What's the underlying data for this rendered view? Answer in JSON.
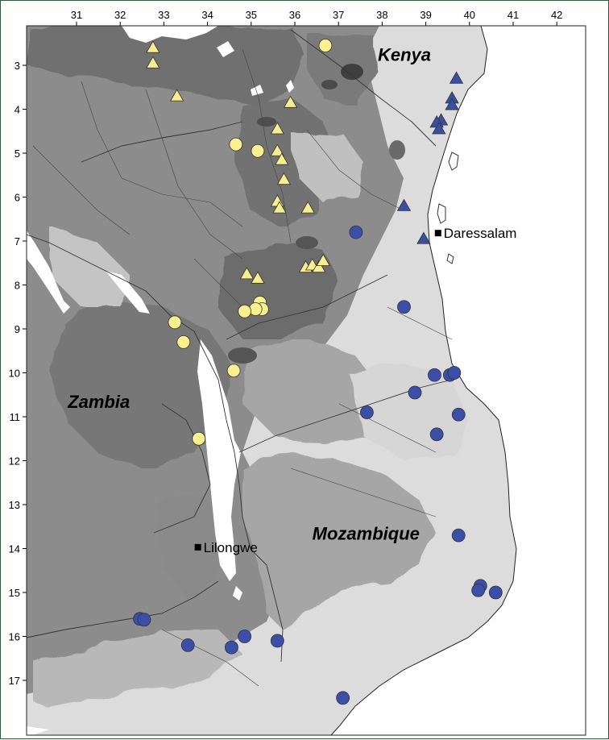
{
  "map": {
    "lon_ticks": [
      31,
      32,
      33,
      34,
      35,
      36,
      37,
      38,
      39,
      40,
      41,
      42
    ],
    "lat_ticks": [
      3,
      4,
      5,
      6,
      7,
      8,
      9,
      10,
      11,
      12,
      13,
      14,
      15,
      16,
      17
    ],
    "countries": [
      {
        "name": "Kenya",
        "lon": 37.9,
        "lat": 2.9
      },
      {
        "name": "Zambia",
        "lon": 30.8,
        "lat": 10.8
      },
      {
        "name": "Mozambique",
        "lon": 36.4,
        "lat": 13.8
      }
    ],
    "cities": [
      {
        "name": "Daressalam",
        "lon": 39.28,
        "lat": 6.82
      },
      {
        "name": "Lilongwe",
        "lon": 33.78,
        "lat": 13.97
      }
    ],
    "colors": {
      "triangle_yellow": "#f7ef8f",
      "triangle_blue": "#3a4fa0",
      "circle_yellow": "#faf08f",
      "circle_blue": "#3b4fa8",
      "lake": "#ffffff",
      "ocean": "#ffffff"
    },
    "yellow_triangles": [
      [
        32.75,
        2.6
      ],
      [
        32.75,
        2.95
      ],
      [
        33.3,
        3.7
      ],
      [
        35.9,
        3.85
      ],
      [
        35.6,
        4.45
      ],
      [
        35.6,
        4.95
      ],
      [
        35.7,
        5.15
      ],
      [
        35.75,
        5.6
      ],
      [
        35.6,
        6.1
      ],
      [
        35.65,
        6.25
      ],
      [
        36.3,
        6.25
      ],
      [
        34.9,
        7.75
      ],
      [
        35.15,
        7.85
      ],
      [
        36.25,
        7.6
      ],
      [
        36.4,
        7.55
      ],
      [
        36.55,
        7.6
      ],
      [
        36.65,
        7.45
      ]
    ],
    "blue_triangles": [
      [
        39.7,
        3.3
      ],
      [
        39.6,
        3.75
      ],
      [
        39.6,
        3.9
      ],
      [
        39.35,
        4.25
      ],
      [
        39.25,
        4.3
      ],
      [
        39.3,
        4.45
      ],
      [
        38.5,
        6.2
      ],
      [
        38.95,
        6.95
      ]
    ],
    "yellow_circles": [
      [
        36.7,
        2.55
      ],
      [
        34.65,
        4.8
      ],
      [
        35.15,
        4.95
      ],
      [
        35.2,
        8.4
      ],
      [
        35.25,
        8.55
      ],
      [
        35.1,
        8.55
      ],
      [
        34.85,
        8.6
      ],
      [
        33.25,
        8.85
      ],
      [
        33.45,
        9.3
      ],
      [
        34.6,
        9.95
      ],
      [
        33.8,
        11.5
      ]
    ],
    "blue_circles": [
      [
        37.4,
        6.8
      ],
      [
        38.5,
        8.5
      ],
      [
        39.2,
        10.05
      ],
      [
        39.55,
        10.05
      ],
      [
        39.65,
        10.0
      ],
      [
        38.75,
        10.45
      ],
      [
        37.65,
        10.9
      ],
      [
        39.75,
        10.95
      ],
      [
        39.25,
        11.4
      ],
      [
        39.75,
        13.7
      ],
      [
        40.25,
        14.85
      ],
      [
        40.2,
        14.95
      ],
      [
        40.6,
        15.0
      ],
      [
        32.45,
        15.6
      ],
      [
        32.55,
        15.62
      ],
      [
        33.55,
        16.2
      ],
      [
        34.55,
        16.25
      ],
      [
        34.85,
        16.0
      ],
      [
        35.6,
        16.1
      ],
      [
        37.1,
        17.4
      ]
    ]
  }
}
